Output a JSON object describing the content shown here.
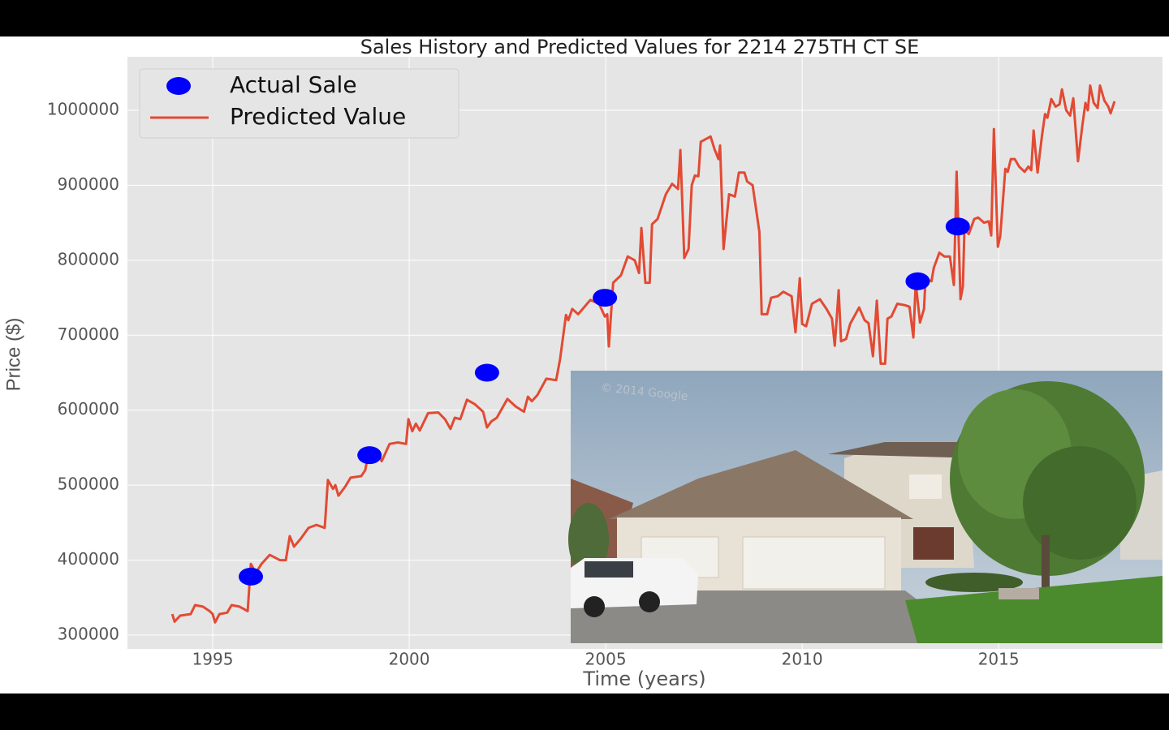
{
  "chart_data": {
    "type": "line",
    "title": "Sales History and Predicted Values for 2214   275TH CT SE",
    "xlabel": "Time (years)",
    "ylabel": "Price ($)",
    "xlim": [
      1992.83,
      2019.17
    ],
    "ylim": [
      281600,
      1071400
    ],
    "xticks": [
      1995,
      2000,
      2005,
      2010,
      2015
    ],
    "yticks": [
      300000,
      400000,
      500000,
      600000,
      700000,
      800000,
      900000,
      1000000
    ],
    "grid": true,
    "legend": "upper left",
    "series": [
      {
        "name": "Actual Sale",
        "style": "marker",
        "color": "#0000ff",
        "x": [
          1995.97,
          1998.99,
          2001.98,
          2004.98,
          2012.94,
          2013.96
        ],
        "values": [
          378000,
          540000,
          650000,
          750000,
          772000,
          845000
        ]
      },
      {
        "name": "Predicted Value",
        "style": "line",
        "color": "#e24a33",
        "x": [
          1993.97,
          1994.03,
          1994.17,
          1994.44,
          1994.55,
          1994.75,
          1994.92,
          1995.0,
          1995.06,
          1995.17,
          1995.37,
          1995.48,
          1995.68,
          1995.89,
          1995.97,
          1996.1,
          1996.24,
          1996.45,
          1996.71,
          1996.86,
          1996.96,
          1997.07,
          1997.23,
          1997.44,
          1997.64,
          1997.85,
          1997.93,
          1998.06,
          1998.12,
          1998.2,
          1998.37,
          1998.51,
          1998.78,
          1998.88,
          1998.99,
          1999.09,
          1999.19,
          1999.3,
          1999.5,
          1999.71,
          1999.92,
          1999.98,
          2000.08,
          2000.17,
          2000.27,
          2000.48,
          2000.74,
          2000.91,
          2001.05,
          2001.16,
          2001.3,
          2001.47,
          2001.67,
          2001.88,
          2001.98,
          2002.09,
          2002.23,
          2002.5,
          2002.71,
          2002.92,
          2003.02,
          2003.12,
          2003.26,
          2003.49,
          2003.74,
          2003.84,
          2003.99,
          2004.05,
          2004.15,
          2004.3,
          2004.61,
          2004.83,
          2004.98,
          2005.04,
          2005.08,
          2005.19,
          2005.39,
          2005.56,
          2005.74,
          2005.85,
          2005.91,
          2006.01,
          2006.12,
          2006.18,
          2006.32,
          2006.53,
          2006.69,
          2006.84,
          2006.9,
          2007.0,
          2007.11,
          2007.19,
          2007.27,
          2007.36,
          2007.42,
          2007.67,
          2007.77,
          2007.87,
          2007.91,
          2008.0,
          2008.14,
          2008.29,
          2008.39,
          2008.53,
          2008.6,
          2008.74,
          2008.91,
          2008.97,
          2009.11,
          2009.21,
          2009.38,
          2009.52,
          2009.73,
          2009.83,
          2009.94,
          2010.0,
          2010.1,
          2010.25,
          2010.45,
          2010.62,
          2010.76,
          2010.83,
          2010.93,
          2010.99,
          2011.12,
          2011.22,
          2011.45,
          2011.59,
          2011.69,
          2011.8,
          2011.9,
          2012.0,
          2012.11,
          2012.17,
          2012.27,
          2012.42,
          2012.62,
          2012.73,
          2012.83,
          2012.89,
          2013.0,
          2013.1,
          2013.14,
          2013.29,
          2013.35,
          2013.49,
          2013.62,
          2013.76,
          2013.86,
          2013.93,
          2014.03,
          2014.09,
          2014.13,
          2014.24,
          2014.38,
          2014.48,
          2014.63,
          2014.75,
          2014.81,
          2014.88,
          2014.98,
          2015.04,
          2015.17,
          2015.23,
          2015.31,
          2015.41,
          2015.52,
          2015.66,
          2015.76,
          2015.83,
          2015.89,
          2015.99,
          2016.1,
          2016.18,
          2016.24,
          2016.34,
          2016.45,
          2016.55,
          2016.61,
          2016.72,
          2016.82,
          2016.9,
          2017.02,
          2017.13,
          2017.21,
          2017.27,
          2017.33,
          2017.42,
          2017.52,
          2017.58,
          2017.69,
          2017.79,
          2017.85,
          2017.95
        ],
        "values": [
          328000,
          318000,
          326000,
          328000,
          340000,
          338000,
          332000,
          328000,
          317000,
          328000,
          330000,
          340000,
          338000,
          332000,
          395000,
          383000,
          395000,
          407000,
          400000,
          400000,
          432000,
          418000,
          428000,
          443000,
          447000,
          443000,
          507000,
          495000,
          500000,
          486000,
          498000,
          510000,
          512000,
          520000,
          550000,
          535000,
          545000,
          532000,
          555000,
          557000,
          555000,
          588000,
          572000,
          582000,
          573000,
          596000,
          597000,
          588000,
          575000,
          590000,
          588000,
          614000,
          608000,
          598000,
          577000,
          585000,
          590000,
          615000,
          605000,
          598000,
          618000,
          612000,
          620000,
          642000,
          640000,
          668000,
          727000,
          720000,
          735000,
          728000,
          747000,
          742000,
          725000,
          728000,
          685000,
          770000,
          780000,
          805000,
          800000,
          783000,
          843000,
          770000,
          770000,
          848000,
          855000,
          888000,
          902000,
          895000,
          947000,
          803000,
          815000,
          900000,
          913000,
          912000,
          958000,
          965000,
          948000,
          935000,
          953000,
          815000,
          888000,
          885000,
          917000,
          917000,
          905000,
          900000,
          838000,
          728000,
          728000,
          750000,
          752000,
          758000,
          752000,
          704000,
          776000,
          715000,
          712000,
          742000,
          748000,
          735000,
          722000,
          686000,
          760000,
          692000,
          695000,
          715000,
          737000,
          720000,
          716000,
          672000,
          746000,
          662000,
          662000,
          722000,
          725000,
          742000,
          740000,
          738000,
          697000,
          770000,
          717000,
          735000,
          775000,
          772000,
          790000,
          810000,
          805000,
          805000,
          767000,
          918000,
          748000,
          765000,
          840000,
          835000,
          855000,
          857000,
          850000,
          852000,
          833000,
          975000,
          818000,
          832000,
          922000,
          918000,
          935000,
          935000,
          925000,
          918000,
          925000,
          920000,
          973000,
          917000,
          965000,
          995000,
          990000,
          1015000,
          1005000,
          1008000,
          1028000,
          1000000,
          993000,
          1016000,
          932000,
          980000,
          1010000,
          1000000,
          1033000,
          1010000,
          1003000,
          1033000,
          1013000,
          1005000,
          996000,
          1012000
        ]
      }
    ]
  },
  "inset_photo": {
    "watermark": "© 2014 Google"
  }
}
